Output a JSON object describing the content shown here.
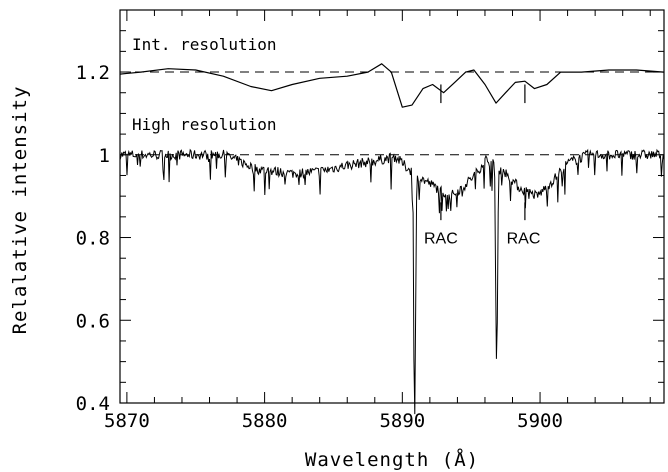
{
  "chart_data": {
    "type": "line",
    "xlabel": "Wavelength (Å)",
    "ylabel": "Relalative intensity",
    "xlim": [
      5869.5,
      5909
    ],
    "ylim": [
      0.4,
      1.35
    ],
    "x_ticks": [
      5870,
      5880,
      5890,
      5900
    ],
    "x_tick_labels": [
      "5870",
      "5880",
      "5890",
      "5900"
    ],
    "y_ticks": [
      0.4,
      0.6,
      0.8,
      1.0,
      1.2
    ],
    "y_tick_labels": [
      "0.4",
      "0.6",
      "0.8",
      "1",
      "1.2"
    ],
    "grid": false,
    "legend": "none",
    "reference_lines": [
      {
        "y": 1.2,
        "style": "dashed"
      },
      {
        "y": 1.0,
        "style": "dashed"
      }
    ],
    "series": [
      {
        "label_text": "Int. resolution",
        "x": [
          5869.5,
          5871,
          5873,
          5875,
          5877,
          5879,
          5880.5,
          5882,
          5884,
          5886,
          5887.5,
          5888.5,
          5889.2,
          5890,
          5890.7,
          5891.5,
          5892.2,
          5893,
          5893.8,
          5894.6,
          5895.2,
          5896,
          5896.8,
          5897.5,
          5898.2,
          5898.9,
          5899.6,
          5900.5,
          5901.5,
          5903,
          5905,
          5907,
          5909
        ],
        "values": [
          1.195,
          1.2,
          1.208,
          1.205,
          1.19,
          1.165,
          1.155,
          1.17,
          1.185,
          1.19,
          1.2,
          1.22,
          1.2,
          1.115,
          1.12,
          1.16,
          1.17,
          1.15,
          1.175,
          1.2,
          1.205,
          1.17,
          1.125,
          1.15,
          1.175,
          1.178,
          1.16,
          1.17,
          1.2,
          1.2,
          1.205,
          1.205,
          1.2
        ]
      },
      {
        "label_text": "High resolution",
        "continuum_points": [
          [
            5869.5,
            1.0
          ],
          [
            5877,
            1.0
          ],
          [
            5879.5,
            0.965
          ],
          [
            5882,
            0.955
          ],
          [
            5884,
            0.96
          ],
          [
            5886,
            0.975
          ],
          [
            5888,
            0.985
          ],
          [
            5889.5,
            0.995
          ],
          [
            5890.3,
            0.97
          ],
          [
            5891.5,
            0.94
          ],
          [
            5892.5,
            0.92
          ],
          [
            5893.5,
            0.9
          ],
          [
            5894.5,
            0.925
          ],
          [
            5895.5,
            0.96
          ],
          [
            5896,
            0.99
          ],
          [
            5897.4,
            0.96
          ],
          [
            5898.5,
            0.92
          ],
          [
            5899.8,
            0.9
          ],
          [
            5901,
            0.94
          ],
          [
            5902,
            0.98
          ],
          [
            5903.5,
            1.0
          ],
          [
            5909,
            1.0
          ]
        ],
        "deep_lines": [
          {
            "center": 5890.9,
            "min": 0.41
          },
          {
            "center": 5896.85,
            "min": 0.515
          }
        ],
        "noise_amplitude": 0.012
      }
    ],
    "annotations": [
      {
        "text": "RAC",
        "x": 5892.8,
        "y": 0.8
      },
      {
        "text": "RAC",
        "x": 5898.8,
        "y": 0.8
      }
    ],
    "markers": [
      {
        "x": 5892.8,
        "y_top": 1.17,
        "y_bottom": 1.125
      },
      {
        "x": 5898.9,
        "y_top": 1.17,
        "y_bottom": 1.125
      },
      {
        "x": 5892.8,
        "y_top": 0.885,
        "y_bottom": 0.842
      },
      {
        "x": 5898.9,
        "y_top": 0.885,
        "y_bottom": 0.842
      }
    ]
  }
}
